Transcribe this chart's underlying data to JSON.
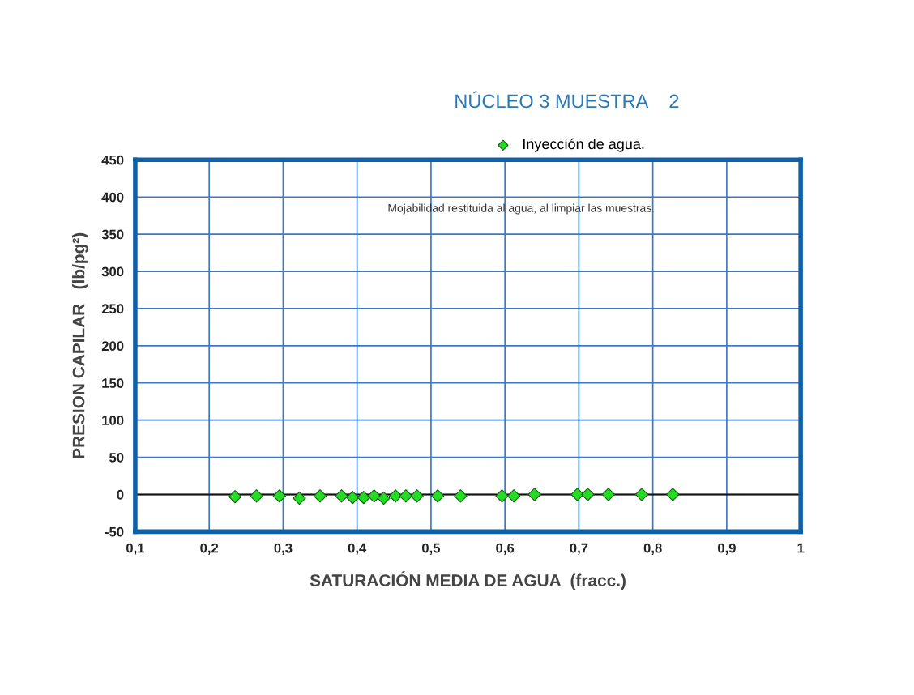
{
  "chart_data": {
    "type": "scatter",
    "title": "NÚCLEO 3 MUESTRA    2",
    "xlabel": "SATURACIÓN MEDIA DE AGUA  (fracc.)",
    "ylabel": "PRESION CAPILAR   (lb/pg²)",
    "annotations": [
      "Mojabilidad restituida al agua, al limpiar las muestras."
    ],
    "x": [
      0.235,
      0.264,
      0.295,
      0.322,
      0.35,
      0.379,
      0.394,
      0.409,
      0.423,
      0.436,
      0.452,
      0.466,
      0.481,
      0.509,
      0.54,
      0.596,
      0.612,
      0.64,
      0.698,
      0.712,
      0.74,
      0.785,
      0.827
    ],
    "series": [
      {
        "name": "Inyección de agua.",
        "color": "#22dd22",
        "values": [
          -3,
          -2,
          -2,
          -5,
          -2,
          -2,
          -4,
          -4,
          -2,
          -5,
          -2,
          -2,
          -2,
          -2,
          -2,
          -2,
          -2,
          0,
          0,
          0,
          0,
          0,
          0
        ]
      }
    ],
    "marker": "diamond",
    "grid": true,
    "legend": "top",
    "xlim": [
      0.1,
      1.0
    ],
    "xticks": [
      {
        "value": 0.1,
        "label": "0,1"
      },
      {
        "value": 0.2,
        "label": "0,2"
      },
      {
        "value": 0.3,
        "label": "0,3"
      },
      {
        "value": 0.4,
        "label": "0,4"
      },
      {
        "value": 0.5,
        "label": "0,5"
      },
      {
        "value": 0.6,
        "label": "0,6"
      },
      {
        "value": 0.7,
        "label": "0,7"
      },
      {
        "value": 0.8,
        "label": "0,8"
      },
      {
        "value": 0.9,
        "label": "0,9"
      },
      1
    ],
    "ylim": [
      -50,
      450
    ],
    "yticks": [
      -50,
      0,
      50,
      100,
      150,
      200,
      250,
      300,
      350,
      400,
      450
    ],
    "ref_lines": [
      {
        "axis": "y",
        "value": 0,
        "color": "#111111"
      }
    ]
  }
}
